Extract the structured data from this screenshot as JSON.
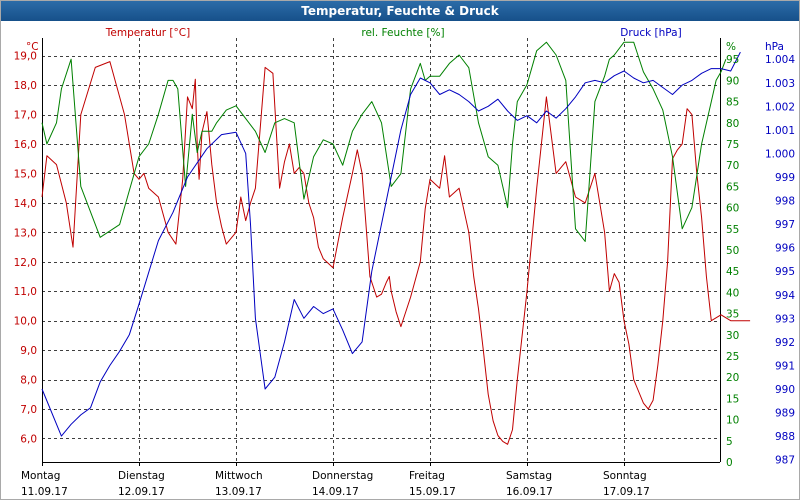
{
  "window": {
    "title": "Temperatur, Feuchte & Druck"
  },
  "chart_data": {
    "type": "line",
    "title": "Temperatur, Feuchte & Druck",
    "x_days": [
      {
        "name": "Montag",
        "date": "11.09.17"
      },
      {
        "name": "Dienstag",
        "date": "12.09.17"
      },
      {
        "name": "Mittwoch",
        "date": "13.09.17"
      },
      {
        "name": "Donnerstag",
        "date": "14.09.17"
      },
      {
        "name": "Freitag",
        "date": "15.09.17"
      },
      {
        "name": "Samstag",
        "date": "16.09.17"
      },
      {
        "name": "Sonntag",
        "date": "17.09.17"
      }
    ],
    "axes": {
      "temperature": {
        "label": "Temperatur [°C]",
        "unit": "°C",
        "range": [
          5.2,
          19.6
        ],
        "ticks": [
          6.0,
          7.0,
          8.0,
          9.0,
          10.0,
          11.0,
          12.0,
          13.0,
          14.0,
          15.0,
          16.0,
          17.0,
          18.0,
          19.0
        ],
        "tick_labels": [
          "6,0",
          "7,0",
          "8,0",
          "9,0",
          "10,0",
          "11,0",
          "12,0",
          "13,0",
          "14,0",
          "15,0",
          "16,0",
          "17,0",
          "18,0",
          "19,0"
        ],
        "color": "#c00000"
      },
      "humidity": {
        "label": "rel. Feuchte [%]",
        "unit": "%",
        "range": [
          0,
          100
        ],
        "ticks": [
          0,
          5,
          10,
          15,
          20,
          25,
          30,
          35,
          40,
          45,
          50,
          55,
          60,
          65,
          70,
          75,
          80,
          85,
          90,
          95
        ],
        "tick_labels": [
          "0",
          "5",
          "10",
          "15",
          "20",
          "25",
          "30",
          "35",
          "40",
          "45",
          "50",
          "55",
          "60",
          "65",
          "70",
          "75",
          "80",
          "85",
          "90",
          "95"
        ],
        "color": "#008000"
      },
      "pressure": {
        "label": "Druck [hPa]",
        "unit": "hPa",
        "range": [
          986.9,
          1004.9
        ],
        "ticks": [
          987,
          988,
          989,
          990,
          991,
          992,
          993,
          994,
          995,
          996,
          997,
          998,
          999,
          1000,
          1001,
          1002,
          1003,
          1004
        ],
        "tick_labels": [
          "987",
          "988",
          "989",
          "990",
          "991",
          "992",
          "993",
          "994",
          "995",
          "996",
          "997",
          "998",
          "999",
          "1.000",
          "1.001",
          "1.002",
          "1.003",
          "1.004"
        ],
        "color": "#0000c0"
      }
    },
    "series": [
      {
        "name": "Temperatur [°C]",
        "axis": "temperature",
        "color": "#c00000",
        "x": [
          0,
          0.05,
          0.15,
          0.25,
          0.32,
          0.4,
          0.55,
          0.7,
          0.85,
          0.95,
          1.0,
          1.05,
          1.1,
          1.2,
          1.3,
          1.38,
          1.45,
          1.5,
          1.55,
          1.58,
          1.6,
          1.62,
          1.65,
          1.7,
          1.75,
          1.8,
          1.85,
          1.9,
          2.0,
          2.05,
          2.1,
          2.15,
          2.2,
          2.3,
          2.38,
          2.45,
          2.5,
          2.55,
          2.6,
          2.65,
          2.7,
          2.75,
          2.8,
          2.85,
          2.9,
          3.0,
          3.1,
          3.2,
          3.25,
          3.3,
          3.38,
          3.45,
          3.5,
          3.55,
          3.58,
          3.6,
          3.65,
          3.7,
          3.8,
          3.9,
          3.95,
          4.0,
          4.1,
          4.15,
          4.2,
          4.3,
          4.4,
          4.45,
          4.5,
          4.55,
          4.6,
          4.65,
          4.7,
          4.75,
          4.8,
          4.85,
          4.9,
          5.0,
          5.1,
          5.2,
          5.3,
          5.4,
          5.5,
          5.6,
          5.7,
          5.8,
          5.85,
          5.9,
          5.95,
          6.0,
          6.05,
          6.1,
          6.2,
          6.25,
          6.3,
          6.35,
          6.4,
          6.45,
          6.5,
          6.55,
          6.6,
          6.65,
          6.7,
          6.75,
          6.8,
          6.85,
          6.9,
          7.0,
          7.1,
          7.2,
          7.3
        ],
        "values": [
          14.2,
          15.6,
          15.3,
          14.0,
          12.5,
          17.0,
          18.6,
          18.8,
          17.0,
          15.0,
          14.8,
          15.0,
          14.5,
          14.2,
          13.0,
          12.6,
          14.8,
          17.6,
          17.2,
          18.2,
          16.0,
          14.8,
          16.4,
          17.1,
          15.3,
          14.0,
          13.2,
          12.6,
          13.0,
          14.2,
          13.4,
          14.0,
          14.5,
          18.6,
          18.4,
          14.5,
          15.4,
          16.0,
          15.0,
          15.2,
          15.0,
          14.0,
          13.5,
          12.5,
          12.1,
          11.8,
          13.5,
          15.0,
          15.8,
          15.0,
          11.5,
          10.8,
          10.9,
          11.3,
          11.5,
          11.0,
          10.3,
          9.8,
          10.8,
          12.0,
          13.8,
          14.8,
          14.5,
          15.6,
          14.2,
          14.5,
          13.0,
          11.5,
          10.4,
          9.0,
          7.5,
          6.6,
          6.1,
          5.9,
          5.8,
          6.3,
          8.0,
          11.0,
          14.5,
          17.6,
          15.0,
          15.4,
          14.2,
          14.0,
          15.0,
          13.0,
          11.0,
          11.6,
          11.3,
          10.0,
          9.2,
          8.0,
          7.2,
          7.0,
          7.3,
          8.5,
          10.0,
          12.0,
          15.5,
          15.8,
          16.0,
          17.2,
          17.0,
          15.0,
          13.5,
          11.5,
          10.0,
          10.2,
          10.0,
          10.0,
          10.0
        ]
      },
      {
        "name": "rel. Feuchte [%]",
        "axis": "humidity",
        "color": "#008000",
        "x": [
          0,
          0.05,
          0.15,
          0.2,
          0.3,
          0.4,
          0.6,
          0.8,
          1.0,
          1.1,
          1.2,
          1.3,
          1.35,
          1.4,
          1.48,
          1.55,
          1.6,
          1.65,
          1.75,
          1.8,
          1.9,
          2.0,
          2.1,
          2.2,
          2.3,
          2.4,
          2.5,
          2.6,
          2.7,
          2.8,
          2.9,
          3.0,
          3.1,
          3.2,
          3.3,
          3.4,
          3.5,
          3.6,
          3.7,
          3.8,
          3.9,
          3.95,
          4.0,
          4.1,
          4.2,
          4.3,
          4.4,
          4.5,
          4.6,
          4.7,
          4.8,
          4.85,
          4.9,
          5.0,
          5.1,
          5.2,
          5.3,
          5.4,
          5.5,
          5.6,
          5.7,
          5.8,
          5.85,
          5.9,
          6.0,
          6.1,
          6.2,
          6.3,
          6.4,
          6.5,
          6.6,
          6.7,
          6.8,
          6.9,
          6.95,
          7.0,
          7.05
        ],
        "values": [
          80,
          75,
          80,
          88,
          95,
          65,
          53,
          56,
          72,
          75,
          82,
          90,
          90,
          88,
          65,
          82,
          73,
          78,
          78,
          80,
          83,
          84,
          81,
          78,
          73,
          80,
          81,
          80,
          62,
          72,
          76,
          75,
          70,
          78,
          82,
          85,
          80,
          65,
          68,
          88,
          94,
          90,
          91,
          91,
          94,
          96,
          93,
          80,
          72,
          70,
          60,
          75,
          85,
          89,
          97,
          99,
          96,
          90,
          55,
          52,
          85,
          91,
          95,
          96,
          99,
          99,
          92,
          88,
          83,
          72,
          55,
          60,
          75,
          85,
          90,
          92,
          95
        ]
      },
      {
        "name": "Druck [hPa]",
        "axis": "pressure",
        "color": "#0000c0",
        "x": [
          0,
          0.2,
          0.3,
          0.4,
          0.5,
          0.6,
          0.7,
          0.8,
          0.9,
          1.0,
          1.2,
          1.35,
          1.5,
          1.7,
          1.85,
          2.0,
          2.1,
          2.15,
          2.2,
          2.3,
          2.4,
          2.5,
          2.6,
          2.7,
          2.8,
          2.9,
          3.0,
          3.1,
          3.2,
          3.3,
          3.4,
          3.5,
          3.6,
          3.7,
          3.8,
          3.9,
          4.0,
          4.1,
          4.2,
          4.3,
          4.4,
          4.5,
          4.6,
          4.7,
          4.8,
          4.9,
          5.0,
          5.1,
          5.2,
          5.3,
          5.4,
          5.5,
          5.6,
          5.7,
          5.8,
          5.9,
          6.0,
          6.1,
          6.2,
          6.3,
          6.4,
          6.5,
          6.6,
          6.7,
          6.8,
          6.9,
          7.0,
          7.1,
          7.2
        ],
        "values": [
          990.0,
          988.0,
          988.5,
          988.9,
          989.2,
          990.3,
          991.0,
          991.6,
          992.3,
          993.6,
          996.3,
          997.5,
          999.0,
          1000.2,
          1000.8,
          1000.9,
          1000.0,
          997.0,
          993.0,
          990.0,
          990.5,
          992.0,
          993.8,
          993.0,
          993.5,
          993.2,
          993.4,
          992.5,
          991.5,
          992.0,
          995.0,
          997.0,
          999.0,
          1001.0,
          1002.5,
          1003.2,
          1003.0,
          1002.5,
          1002.7,
          1002.5,
          1002.2,
          1001.8,
          1002.0,
          1002.3,
          1001.8,
          1001.4,
          1001.6,
          1001.3,
          1001.8,
          1001.5,
          1001.9,
          1002.4,
          1003.0,
          1003.1,
          1003.0,
          1003.3,
          1003.5,
          1003.2,
          1003.0,
          1003.1,
          1002.8,
          1002.5,
          1002.9,
          1003.1,
          1003.4,
          1003.6,
          1003.6,
          1003.5,
          1004.3
        ]
      }
    ]
  }
}
